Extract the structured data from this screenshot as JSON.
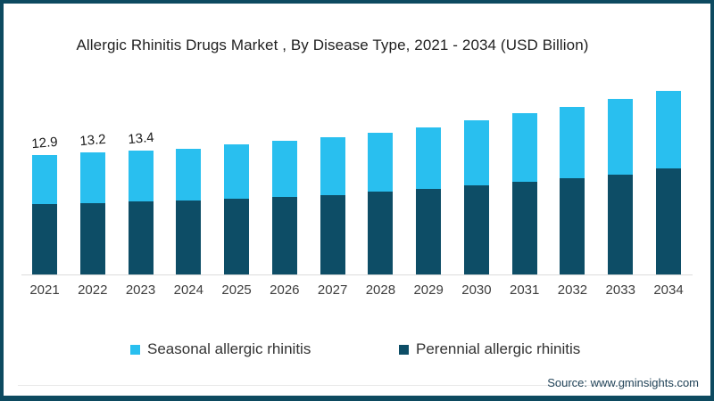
{
  "card": {
    "border_color": "#0d4a60",
    "background": "#ffffff"
  },
  "chart_data": {
    "type": "bar",
    "stacked": true,
    "title": "Allergic Rhinitis Drugs Market , By Disease Type, 2021 - 2034 (USD Billion)",
    "xlabel": "",
    "ylabel": "USD Billion",
    "ylim": [
      0,
      21
    ],
    "grid": false,
    "legend_position": "bottom",
    "categories": [
      "2021",
      "2022",
      "2023",
      "2024",
      "2025",
      "2026",
      "2027",
      "2028",
      "2029",
      "2030",
      "2031",
      "2032",
      "2033",
      "2034"
    ],
    "series": [
      {
        "name": "Seasonal allergic rhinitis",
        "color": "#29bfef",
        "values": [
          5.3,
          5.5,
          5.5,
          5.6,
          5.8,
          6.0,
          6.2,
          6.4,
          6.7,
          7.0,
          7.4,
          7.7,
          8.1,
          8.4
        ]
      },
      {
        "name": "Perennial allergic rhinitis",
        "color": "#0d4d66",
        "values": [
          7.6,
          7.7,
          7.9,
          8.0,
          8.2,
          8.4,
          8.6,
          8.9,
          9.2,
          9.6,
          10.0,
          10.4,
          10.8,
          11.4
        ]
      }
    ],
    "totals": [
      12.9,
      13.2,
      13.4,
      13.6,
      14.0,
      14.4,
      14.8,
      15.3,
      15.9,
      16.6,
      17.4,
      18.1,
      18.9,
      19.8
    ],
    "data_labels": [
      "12.9",
      "13.2",
      "13.4",
      "",
      "",
      "",
      "",
      "",
      "",
      "",
      "",
      "",
      "",
      ""
    ]
  },
  "source": {
    "text": "Source: www.gminsights.com"
  }
}
